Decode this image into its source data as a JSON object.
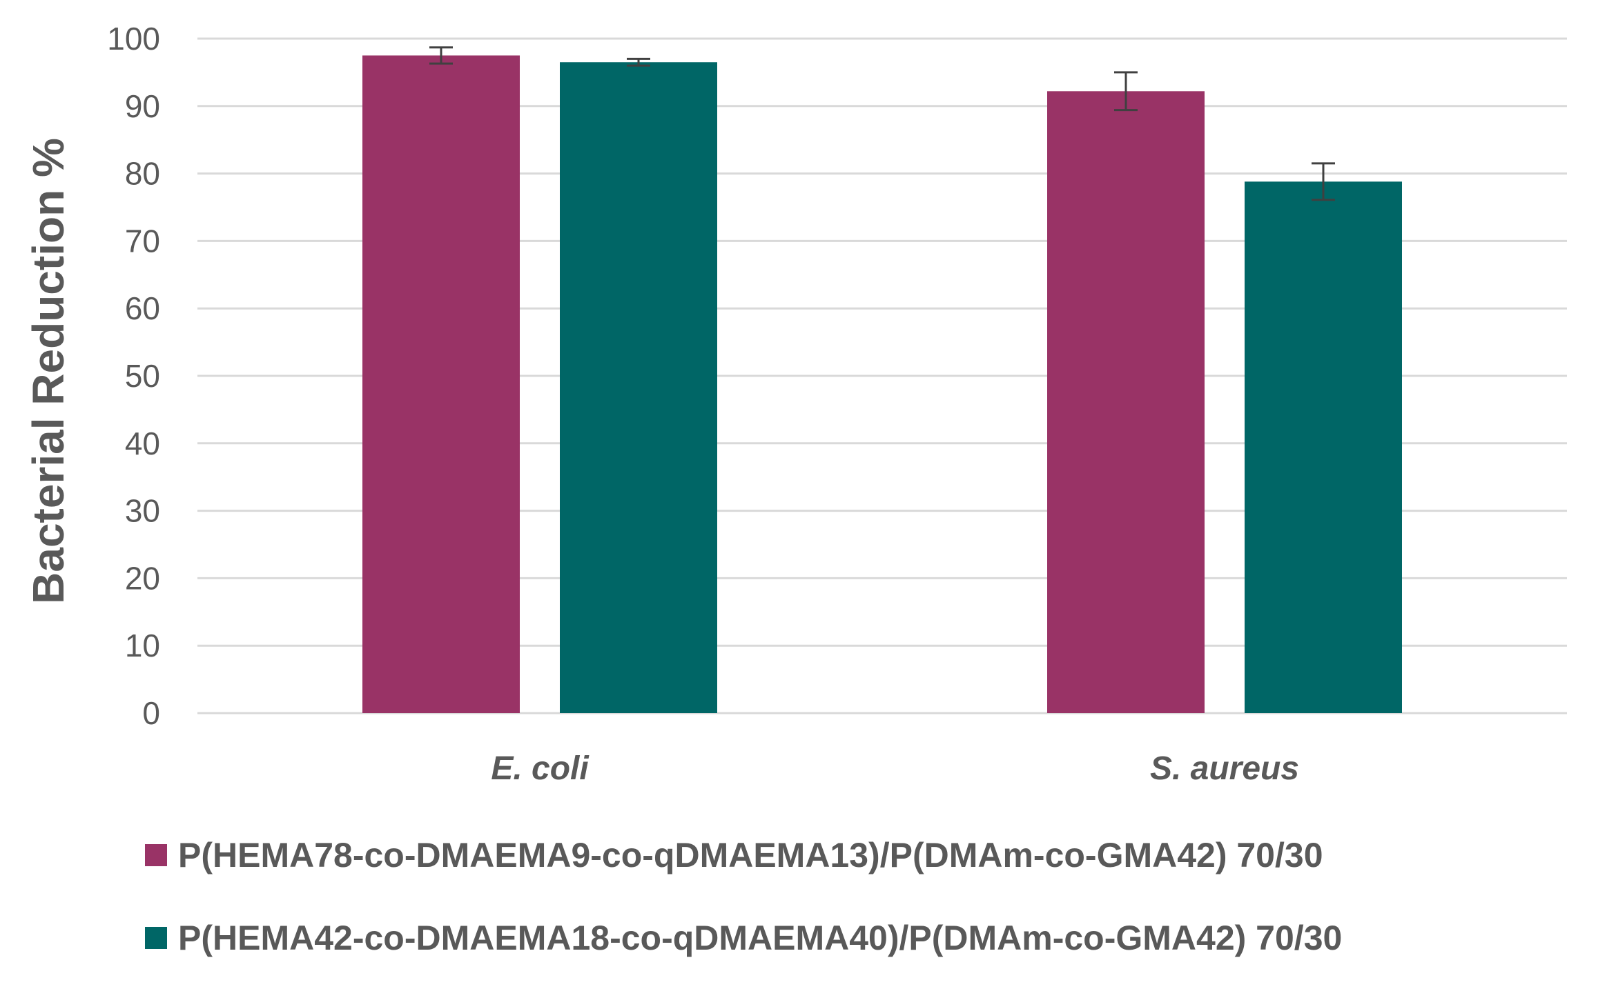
{
  "chart_data": {
    "type": "bar",
    "title": "",
    "xlabel": "",
    "ylabel": "Bacterial Reduction %",
    "categories": [
      "E. coli",
      "S. aureus"
    ],
    "ylim": [
      0,
      100
    ],
    "yticks": [
      0,
      10,
      20,
      30,
      40,
      50,
      60,
      70,
      80,
      90,
      100
    ],
    "grid": true,
    "legend_position": "bottom",
    "series": [
      {
        "name": "P(HEMA78-co-DMAEMA9-co-qDMAEMA13)/P(DMAm-co-GMA42) 70/30",
        "color": "#993366",
        "values": [
          97.5,
          92.2
        ],
        "errors": [
          1.2,
          2.8
        ]
      },
      {
        "name": "P(HEMA42-co-DMAEMA18-co-qDMAEMA40)/P(DMAm-co-GMA42) 70/30",
        "color": "#006666",
        "values": [
          96.5,
          78.8
        ],
        "errors": [
          0.5,
          2.7
        ]
      }
    ]
  }
}
